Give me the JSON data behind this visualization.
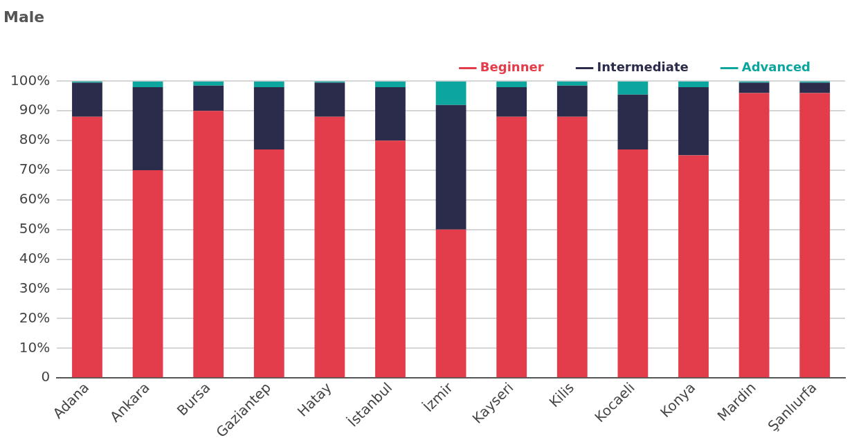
{
  "chart_data": {
    "type": "bar",
    "title": "Male",
    "stacked": true,
    "categories": [
      "Adana",
      "Ankara",
      "Bursa",
      "Gaziantep",
      "Hatay",
      "İstanbul",
      "İzmir",
      "Kayseri",
      "Kilis",
      "Kocaeli",
      "Konya",
      "Mardin",
      "Şanlıurfa"
    ],
    "series": [
      {
        "name": "Beginner",
        "color": "#e33c4a",
        "values": [
          88,
          70,
          90,
          77,
          88,
          80,
          50,
          88,
          88,
          77,
          75,
          96,
          96
        ]
      },
      {
        "name": "Intermediate",
        "color": "#2b2b4b",
        "values": [
          11.5,
          28,
          8.5,
          21,
          11.5,
          18,
          42,
          10,
          10.5,
          18.5,
          23,
          3.5,
          3.5
        ]
      },
      {
        "name": "Advanced",
        "color": "#0ca69e",
        "values": [
          0.5,
          2,
          1.5,
          2,
          0.5,
          2,
          8,
          2,
          1.5,
          4.5,
          2,
          0.5,
          0.5
        ]
      }
    ],
    "ylim": [
      0,
      100
    ],
    "yticks": [
      {
        "value": 0,
        "label": "0"
      },
      {
        "value": 10,
        "label": "10%"
      },
      {
        "value": 20,
        "label": "20%"
      },
      {
        "value": 30,
        "label": "30%"
      },
      {
        "value": 40,
        "label": "40%"
      },
      {
        "value": 50,
        "label": "50%"
      },
      {
        "value": 60,
        "label": "60%"
      },
      {
        "value": 70,
        "label": "70%"
      },
      {
        "value": 80,
        "label": "80%"
      },
      {
        "value": 90,
        "label": "90%"
      },
      {
        "value": 100,
        "label": "100%"
      }
    ],
    "grid": "y",
    "legend": "top right"
  }
}
